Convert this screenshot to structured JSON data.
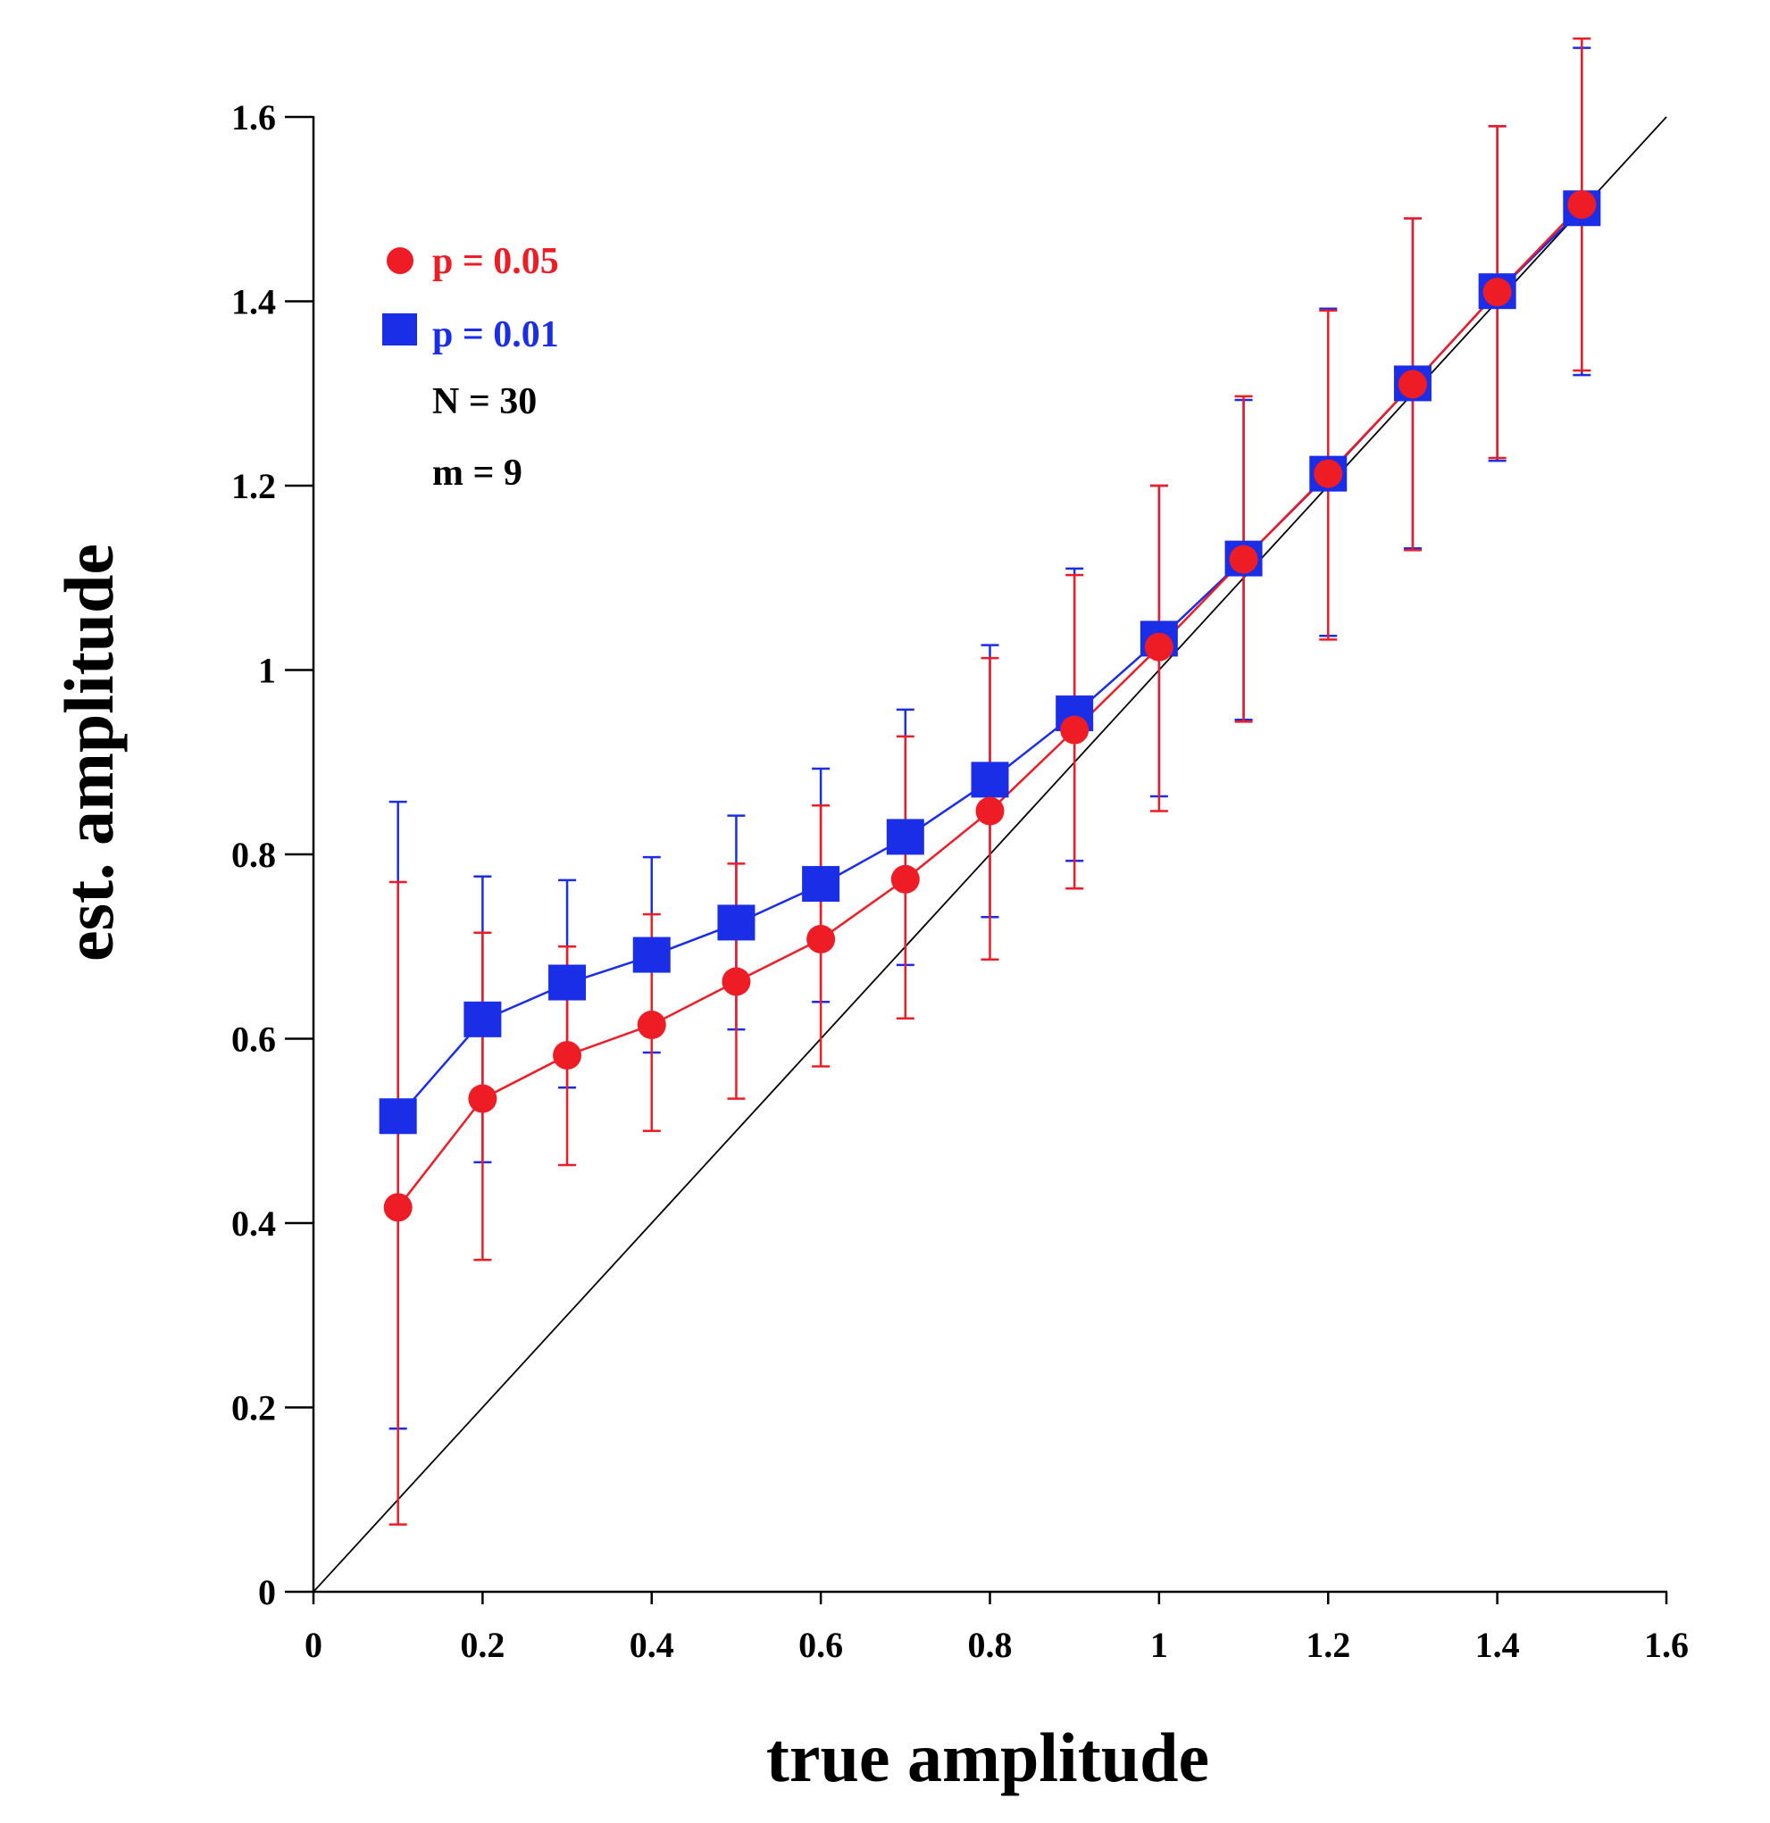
{
  "chart_data": {
    "type": "scatter",
    "title": "",
    "xlabel": "true amplitude",
    "ylabel": "est. amplitude",
    "xlim": [
      0,
      1.6
    ],
    "ylim": [
      0,
      1.6
    ],
    "x_ticks": [
      0,
      0.2,
      0.4,
      0.6,
      0.8,
      1,
      1.2,
      1.4,
      1.6
    ],
    "x_tick_labels": [
      "0",
      "0.2",
      "0.4",
      "0.6",
      "0.8",
      "1",
      "1.2",
      "1.4",
      "1.6"
    ],
    "y_ticks": [
      0,
      0.2,
      0.4,
      0.6,
      0.8,
      1,
      1.2,
      1.4,
      1.6
    ],
    "y_tick_labels": [
      "0",
      "0.2",
      "0.4",
      "0.6",
      "0.8",
      "1",
      "1.2",
      "1.4",
      "1.6"
    ],
    "grid": false,
    "legend_position": "top-left",
    "reference_line": {
      "name": "identity",
      "x": [
        0,
        1.6
      ],
      "y": [
        0,
        1.6
      ],
      "color": "#000000"
    },
    "series": [
      {
        "name": "p = 0.01",
        "marker": "square",
        "color": "#1a2ee8",
        "x": [
          0.1,
          0.2,
          0.3,
          0.4,
          0.5,
          0.6,
          0.7,
          0.8,
          0.9,
          1.0,
          1.1,
          1.2,
          1.3,
          1.4,
          1.5
        ],
        "y": [
          0.515,
          0.62,
          0.66,
          0.69,
          0.725,
          0.767,
          0.818,
          0.88,
          0.952,
          1.033,
          1.12,
          1.212,
          1.31,
          1.41,
          1.5
        ],
        "err_low": [
          0.177,
          0.466,
          0.547,
          0.585,
          0.61,
          0.64,
          0.68,
          0.732,
          0.793,
          0.863,
          0.946,
          1.037,
          1.132,
          1.227,
          1.32
        ],
        "err_high": [
          0.857,
          0.776,
          0.772,
          0.797,
          0.842,
          0.893,
          0.957,
          1.027,
          1.11,
          1.2,
          1.293,
          1.392,
          1.49,
          1.59,
          1.675
        ]
      },
      {
        "name": "p = 0.05",
        "marker": "circle",
        "color": "#ee1c25",
        "x": [
          0.1,
          0.2,
          0.3,
          0.4,
          0.5,
          0.6,
          0.7,
          0.8,
          0.9,
          1.0,
          1.1,
          1.2,
          1.3,
          1.4,
          1.5
        ],
        "y": [
          0.417,
          0.535,
          0.582,
          0.615,
          0.662,
          0.708,
          0.773,
          0.847,
          0.935,
          1.025,
          1.12,
          1.213,
          1.31,
          1.41,
          1.505
        ],
        "err_low": [
          0.073,
          0.36,
          0.463,
          0.5,
          0.535,
          0.57,
          0.622,
          0.686,
          0.763,
          0.847,
          0.944,
          1.033,
          1.13,
          1.23,
          1.325
        ],
        "err_high": [
          0.77,
          0.715,
          0.7,
          0.735,
          0.79,
          0.853,
          0.928,
          1.013,
          1.103,
          1.2,
          1.297,
          1.39,
          1.49,
          1.59,
          1.685
        ]
      }
    ],
    "annotations": [
      "N = 30",
      "m = 9"
    ]
  },
  "legend": {
    "items": [
      {
        "label": "p = 0.05",
        "marker": "circle",
        "color": "#ee1c25"
      },
      {
        "label": "p = 0.01",
        "marker": "square",
        "color": "#1a2ee8"
      }
    ],
    "notes": [
      "N = 30",
      "m = 9"
    ]
  }
}
